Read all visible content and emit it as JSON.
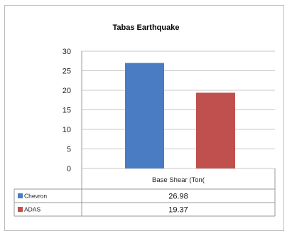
{
  "chart_data": {
    "type": "bar",
    "title": "Tabas Earthquake",
    "categories": [
      "Base Shear (Ton("
    ],
    "series": [
      {
        "name": "Chevron",
        "values": [
          26.98
        ],
        "display": "26.98",
        "color": "#4a7cc4"
      },
      {
        "name": "ADAS",
        "values": [
          19.37
        ],
        "display": "19.37",
        "color": "#c0504d"
      }
    ],
    "ylim": [
      0,
      30
    ],
    "yticks": [
      0,
      5,
      10,
      15,
      20,
      25,
      30
    ],
    "grid": true,
    "legend": "data-table"
  }
}
